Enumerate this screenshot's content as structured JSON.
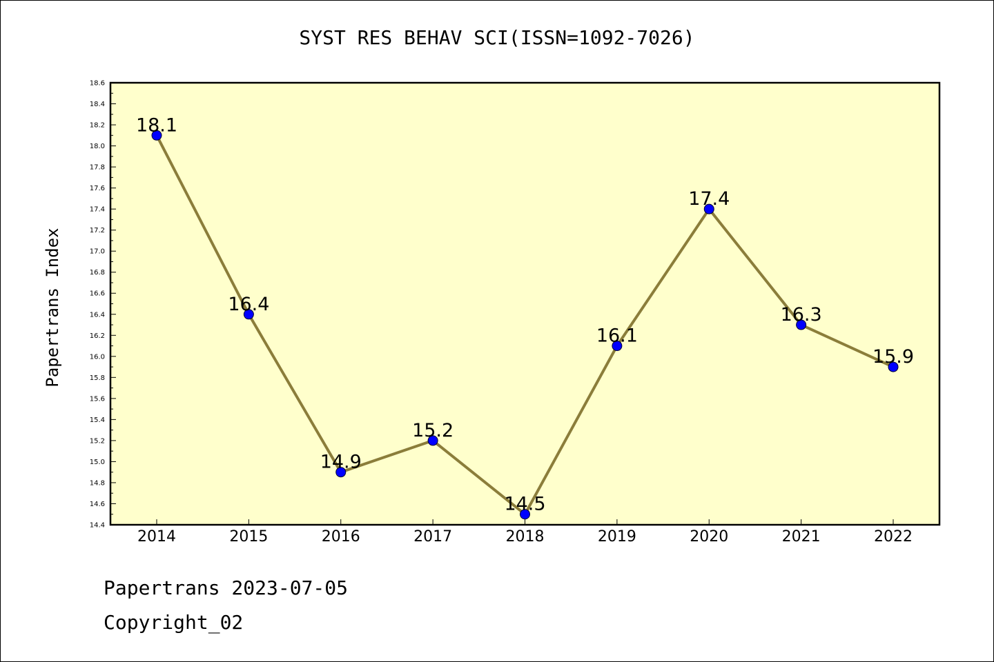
{
  "chart_data": {
    "type": "line",
    "title": "SYST RES BEHAV SCI(ISSN=1092-7026)",
    "xlabel": "",
    "ylabel": "Papertrans Index",
    "categories": [
      "2014",
      "2015",
      "2016",
      "2017",
      "2018",
      "2019",
      "2020",
      "2021",
      "2022"
    ],
    "series": [
      {
        "values": [
          18.1,
          16.4,
          14.9,
          15.2,
          14.5,
          16.1,
          17.4,
          16.3,
          15.9
        ],
        "labels": [
          "18.1",
          "16.4",
          "14.9",
          "15.2",
          "14.5",
          "16.1",
          "17.4",
          "16.3",
          "15.9"
        ]
      }
    ],
    "ylim": [
      14.4,
      18.6
    ],
    "yticks": [
      "14.4",
      "14.6",
      "14.8",
      "15.0",
      "15.2",
      "15.4",
      "15.6",
      "15.8",
      "16.0",
      "16.2",
      "16.4",
      "16.6",
      "16.8",
      "17.0",
      "17.2",
      "17.4",
      "17.6",
      "17.8",
      "18.0",
      "18.2",
      "18.4",
      "18.6"
    ],
    "grid": false,
    "colors": {
      "plot_background": "#ffffcc",
      "line": "#8b7d3a",
      "marker": "#0000ff"
    }
  },
  "footer": {
    "line1": "Papertrans 2023-07-05",
    "line2": "Copyright_02"
  }
}
